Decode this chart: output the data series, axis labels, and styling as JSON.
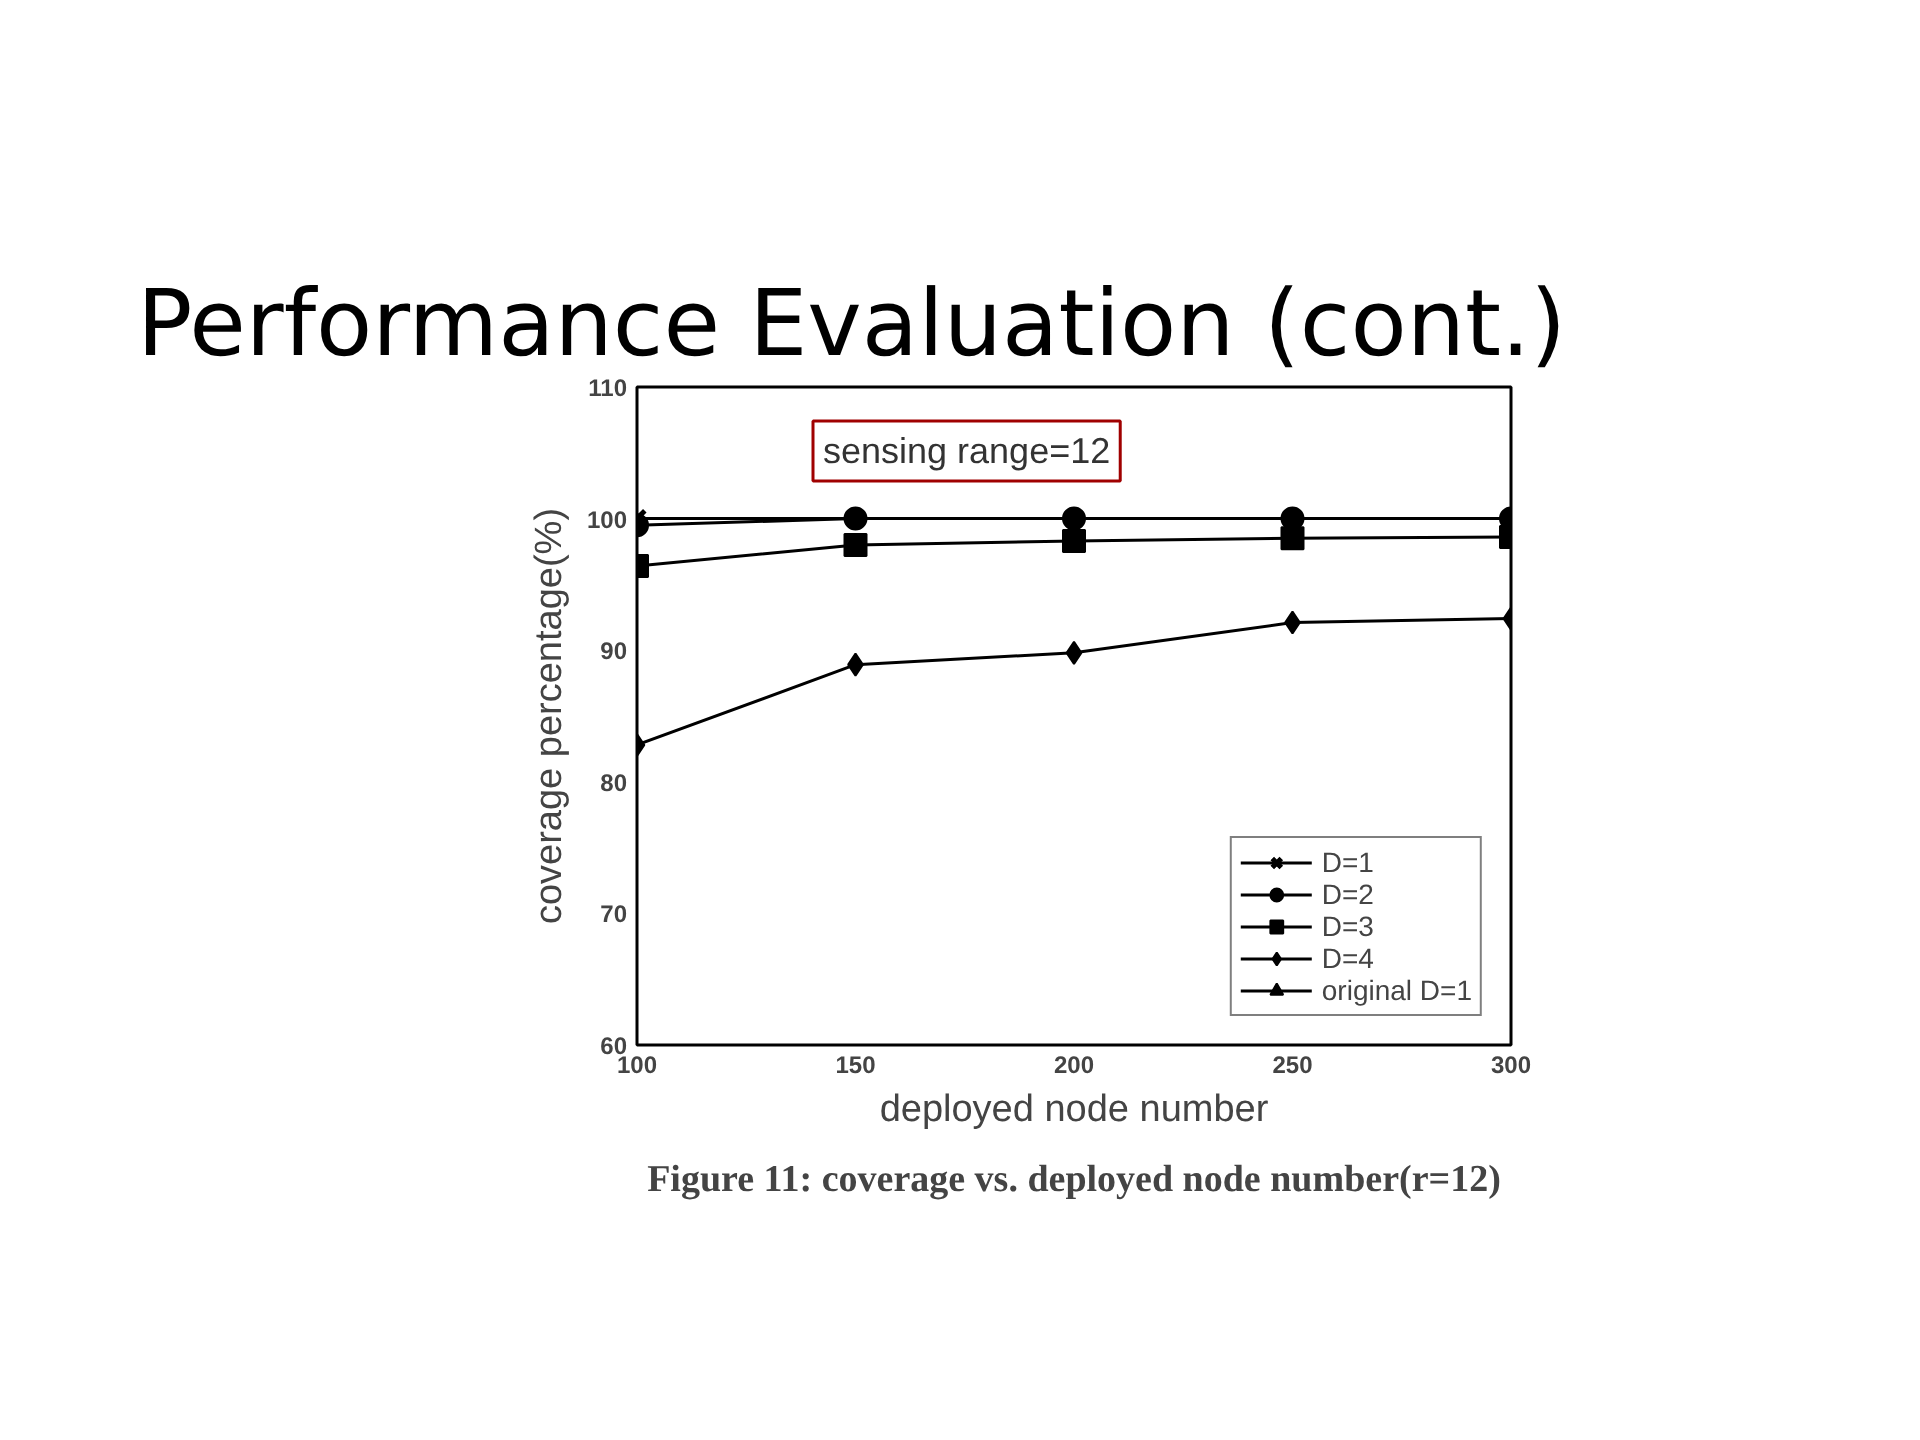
{
  "chart_data": {
    "type": "line",
    "title": "Performance Evaluation (cont.)",
    "xlabel": "deployed node number",
    "ylabel": "coverage percentage(%)",
    "x": [
      100,
      150,
      200,
      250,
      300
    ],
    "series": [
      {
        "name": "D=1",
        "color": "#000000",
        "marker": "cross",
        "values": [
          100,
          100,
          100,
          100,
          100
        ]
      },
      {
        "name": "D=2",
        "color": "#000000",
        "marker": "circle",
        "values": [
          99.5,
          100,
          100,
          100,
          100
        ]
      },
      {
        "name": "D=3",
        "color": "#000000",
        "marker": "square",
        "values": [
          96.4,
          98,
          98.3,
          98.5,
          98.6
        ]
      },
      {
        "name": "D=4",
        "color": "#000000",
        "marker": "diamond",
        "values": [
          82.8,
          88.9,
          89.8,
          92.1,
          92.4
        ]
      },
      {
        "name": "original D=1",
        "color": "#000000",
        "marker": "triangle",
        "values": [
          null,
          null,
          null,
          null,
          null
        ]
      }
    ],
    "xlim": [
      100,
      300
    ],
    "xticks": [
      100,
      150,
      200,
      250,
      300
    ],
    "ylim": [
      60,
      110
    ],
    "yticks": [
      60,
      70,
      80,
      90,
      100,
      110
    ],
    "grid": false,
    "legend": "bottom right",
    "annotations": [
      "sensing range=12",
      "Figure 11: coverage vs. deployed node number(r=12)"
    ]
  }
}
